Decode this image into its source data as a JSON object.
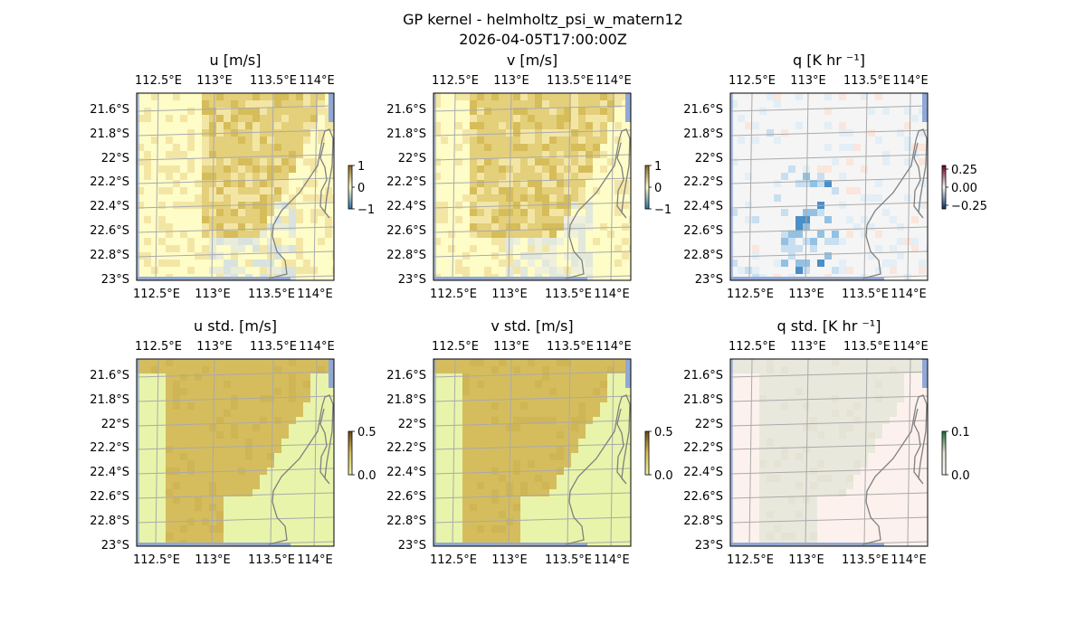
{
  "figure": {
    "title_line1": "GP kernel - helmholtz_psi_w_matern12",
    "title_line2": "2026-04-05T17:00:00Z"
  },
  "colors": {
    "map_border": "#000000",
    "grid": "#aaaaaa",
    "coast": "#808080",
    "sea_strip": "#8fa8d8"
  },
  "chart_data": [
    {
      "type": "heatmap",
      "title": "u [m/s]",
      "lon_ticks": [
        "112.5°E",
        "113°E",
        "113.5°E",
        "114°E"
      ],
      "lat_ticks": [
        "21.6°S",
        "21.8°S",
        "22°S",
        "22.2°S",
        "22.4°S",
        "22.6°S",
        "22.8°S",
        "23°S"
      ],
      "lon_range": [
        112.5,
        114.2
      ],
      "lat_range": [
        -23.0,
        -21.5
      ],
      "colorbar": {
        "ticks": [
          "1",
          "0",
          "−1"
        ],
        "range": [
          -1,
          1
        ],
        "colors": [
          "#2a6fa8",
          "#ffffcc",
          "#8c6a1a"
        ]
      },
      "field_colors": [
        "#fefcc7",
        "#f3e6a5",
        "#e4cf7a",
        "#d6bd5a",
        "#e8ecd8",
        "#d8e3df"
      ]
    },
    {
      "type": "heatmap",
      "title": "v [m/s]",
      "lon_ticks": [
        "112.5°E",
        "113°E",
        "113.5°E",
        "114°E"
      ],
      "lat_ticks": [
        "21.6°S",
        "21.8°S",
        "22°S",
        "22.2°S",
        "22.4°S",
        "22.6°S",
        "22.8°S",
        "23°S"
      ],
      "lon_range": [
        112.5,
        114.2
      ],
      "lat_range": [
        -23.0,
        -21.5
      ],
      "colorbar": {
        "ticks": [
          "1",
          "0",
          "−1"
        ],
        "range": [
          -1,
          1
        ],
        "colors": [
          "#2a6fa8",
          "#ffffcc",
          "#8c6a1a"
        ]
      },
      "field_colors": [
        "#fefcc7",
        "#f3e6a5",
        "#e4cf7a",
        "#d6bd5a",
        "#eef0dc",
        "#e2e8da"
      ]
    },
    {
      "type": "heatmap",
      "title": "q [K hr ⁻¹]",
      "lon_ticks": [
        "112.5°E",
        "113°E",
        "113.5°E",
        "114°E"
      ],
      "lat_ticks": [
        "21.6°S",
        "21.8°S",
        "22°S",
        "22.2°S",
        "22.4°S",
        "22.6°S",
        "22.8°S",
        "23°S"
      ],
      "lon_range": [
        112.5,
        114.2
      ],
      "lat_range": [
        -23.0,
        -21.5
      ],
      "colorbar": {
        "ticks": [
          "0.25",
          "0.00",
          "−0.25"
        ],
        "range": [
          -0.3,
          0.3
        ],
        "colors": [
          "#08306b",
          "#f7f7f7",
          "#67001f"
        ]
      },
      "field_colors": [
        "#f5f5f5",
        "#e3eef6",
        "#c7dff0",
        "#93c1e2",
        "#4a8fc8",
        "#fbe6dc"
      ]
    },
    {
      "type": "heatmap",
      "title": "u std. [m/s]",
      "lon_ticks": [
        "112.5°E",
        "113°E",
        "113.5°E",
        "114°E"
      ],
      "lat_ticks": [
        "21.6°S",
        "21.8°S",
        "22°S",
        "22.2°S",
        "22.4°S",
        "22.6°S",
        "22.8°S",
        "23°S"
      ],
      "lon_range": [
        112.5,
        114.2
      ],
      "lat_range": [
        -23.0,
        -21.5
      ],
      "colorbar": {
        "ticks": [
          "0.5",
          "0.0"
        ],
        "range": [
          0,
          0.5
        ],
        "colors": [
          "#e9f5a6",
          "#d5be5c",
          "#6b4a10"
        ]
      },
      "field_colors": [
        "#e8f4aa",
        "#d5bd5e",
        "#cfb553"
      ]
    },
    {
      "type": "heatmap",
      "title": "v std. [m/s]",
      "lon_ticks": [
        "112.5°E",
        "113°E",
        "113.5°E",
        "114°E"
      ],
      "lat_ticks": [
        "21.6°S",
        "21.8°S",
        "22°S",
        "22.2°S",
        "22.4°S",
        "22.6°S",
        "22.8°S",
        "23°S"
      ],
      "lon_range": [
        112.5,
        114.2
      ],
      "lat_range": [
        -23.0,
        -21.5
      ],
      "colorbar": {
        "ticks": [
          "0.5",
          "0.0"
        ],
        "range": [
          0,
          0.5
        ],
        "colors": [
          "#e9f5a6",
          "#d5be5c",
          "#6b4a10"
        ]
      },
      "field_colors": [
        "#e8f4aa",
        "#d5bd5e",
        "#cfb553"
      ]
    },
    {
      "type": "heatmap",
      "title": "q std. [K hr ⁻¹]",
      "lon_ticks": [
        "112.5°E",
        "113°E",
        "113.5°E",
        "114°E"
      ],
      "lat_ticks": [
        "21.6°S",
        "21.8°S",
        "22°S",
        "22.2°S",
        "22.4°S",
        "22.6°S",
        "22.8°S",
        "23°S"
      ],
      "lon_range": [
        112.5,
        114.2
      ],
      "lat_range": [
        -23.0,
        -21.5
      ],
      "colorbar": {
        "ticks": [
          "0.1",
          "0.0"
        ],
        "range": [
          0,
          0.1
        ],
        "colors": [
          "#fff5f0",
          "#e6e6d6",
          "#1b6b3a"
        ]
      },
      "field_colors": [
        "#fdf1ee",
        "#e9e8dc",
        "#e4e3d4"
      ]
    }
  ]
}
